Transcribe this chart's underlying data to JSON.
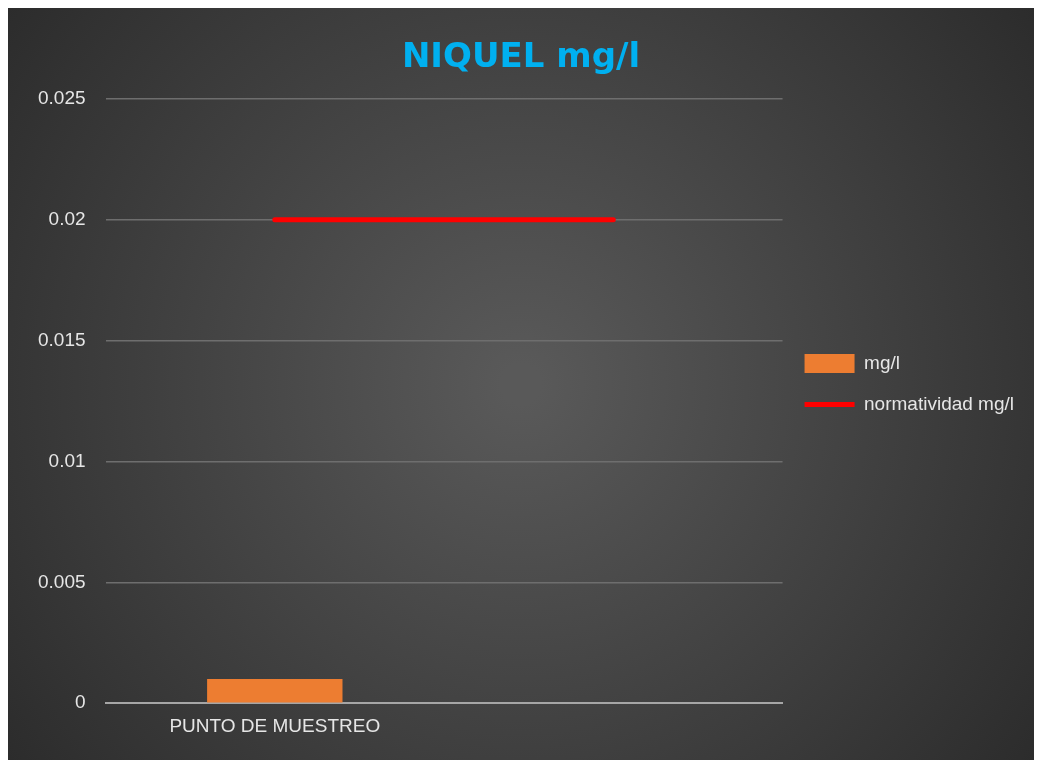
{
  "chart_data": {
    "type": "bar",
    "title": "NIQUEL mg/l",
    "categories": [
      "PUNTO DE MUESTREO",
      null
    ],
    "series": [
      {
        "name": "mg/l",
        "color": "#ed7d31",
        "values": [
          0.001,
          null
        ]
      },
      {
        "name": "normatividad mg/l",
        "type": "line",
        "color": "#ff0000",
        "values": [
          0.02,
          0.02
        ]
      }
    ],
    "ylim": [
      0,
      0.025
    ],
    "yticks": [
      0,
      0.005,
      0.01,
      0.015,
      0.02,
      0.025
    ],
    "grid": "y",
    "legend": "right"
  }
}
